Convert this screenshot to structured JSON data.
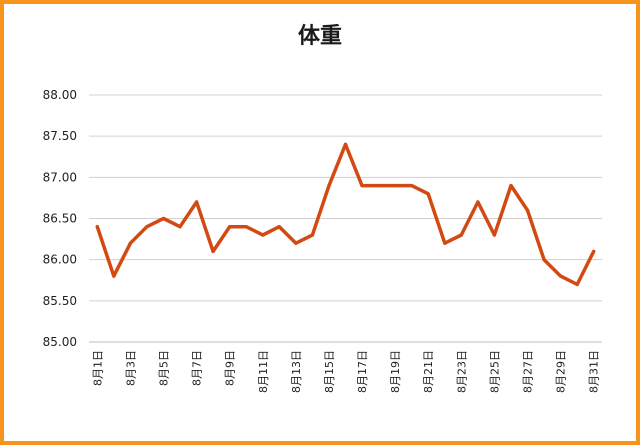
{
  "chart_data": {
    "type": "line",
    "title": "体重",
    "xlabel": "",
    "ylabel": "",
    "ylim": [
      85.0,
      88.0
    ],
    "yticks": [
      "85.00",
      "85.50",
      "86.00",
      "86.50",
      "87.00",
      "87.50",
      "88.00"
    ],
    "grid": true,
    "legend": "none",
    "x": [
      "8月1日",
      "8月2日",
      "8月3日",
      "8月4日",
      "8月5日",
      "8月6日",
      "8月7日",
      "8月8日",
      "8月9日",
      "8月10日",
      "8月11日",
      "8月12日",
      "8月13日",
      "8月14日",
      "8月15日",
      "8月16日",
      "8月17日",
      "8月18日",
      "8月19日",
      "8月20日",
      "8月21日",
      "8月22日",
      "8月23日",
      "8月24日",
      "8月25日",
      "8月26日",
      "8月27日",
      "8月28日",
      "8月29日",
      "8月30日",
      "8月31日"
    ],
    "xtick_labels": [
      "8月1日",
      "",
      "8月3日",
      "",
      "8月5日",
      "",
      "8月7日",
      "",
      "8月9日",
      "",
      "8月11日",
      "",
      "8月13日",
      "",
      "8月15日",
      "",
      "8月17日",
      "",
      "8月19日",
      "",
      "8月21日",
      "",
      "8月23日",
      "",
      "8月25日",
      "",
      "8月27日",
      "",
      "8月29日",
      "",
      "8月31日"
    ],
    "series": [
      {
        "name": "",
        "color": "#d24a12",
        "values": [
          86.4,
          85.8,
          86.2,
          86.4,
          86.5,
          86.4,
          86.7,
          86.1,
          86.4,
          86.4,
          86.3,
          86.4,
          86.2,
          86.3,
          86.9,
          87.4,
          86.9,
          86.9,
          86.9,
          86.9,
          86.8,
          86.2,
          86.3,
          86.7,
          86.3,
          86.9,
          86.6,
          86.0,
          85.8,
          85.7,
          86.1
        ]
      }
    ]
  },
  "colors": {
    "frame": "#f7941d",
    "line": "#d24a12",
    "grid": "#d0d0d0"
  }
}
